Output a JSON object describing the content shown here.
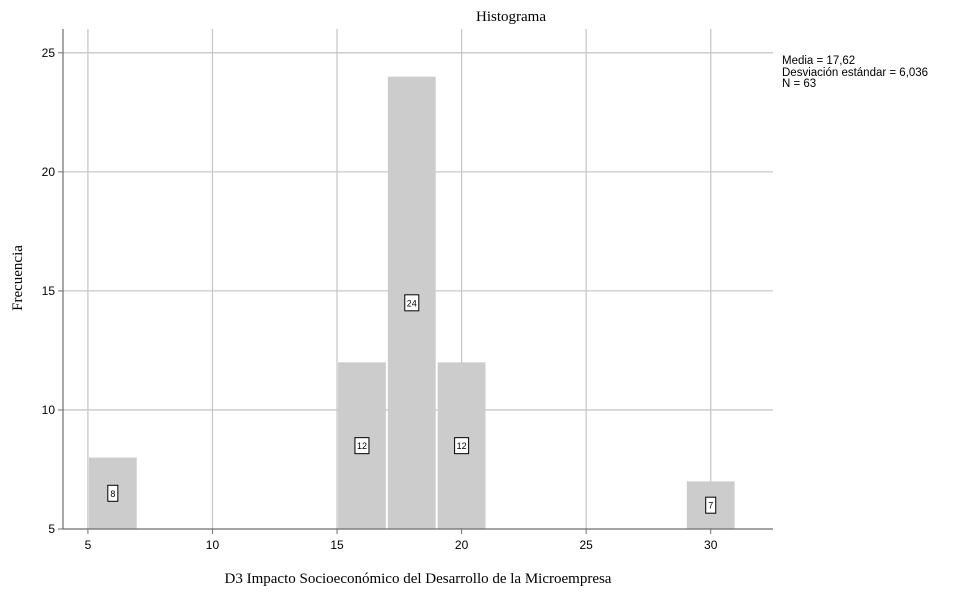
{
  "chart_data": {
    "type": "bar",
    "title": "Histograma",
    "xlabel": "D3 Impacto Socioeconómico del Desarrollo de la Microempresa",
    "ylabel": "Frecuencia",
    "xlim": [
      4,
      32.5
    ],
    "ylim": [
      5,
      26
    ],
    "x_ticks": [
      5,
      10,
      15,
      20,
      25,
      30
    ],
    "y_ticks": [
      5,
      10,
      15,
      20,
      25
    ],
    "grid": true,
    "bin_width": 2,
    "bins": [
      {
        "start": 5,
        "end": 7,
        "value": 8
      },
      {
        "start": 15,
        "end": 17,
        "value": 12
      },
      {
        "start": 17,
        "end": 19,
        "value": 24
      },
      {
        "start": 19,
        "end": 21,
        "value": 12
      },
      {
        "start": 29,
        "end": 31,
        "value": 7
      }
    ],
    "bar_color": "#cccccc",
    "stats": {
      "mean": "Media = 17,62",
      "std": "Desviación estándar = 6,036",
      "n": "N = 63"
    }
  }
}
